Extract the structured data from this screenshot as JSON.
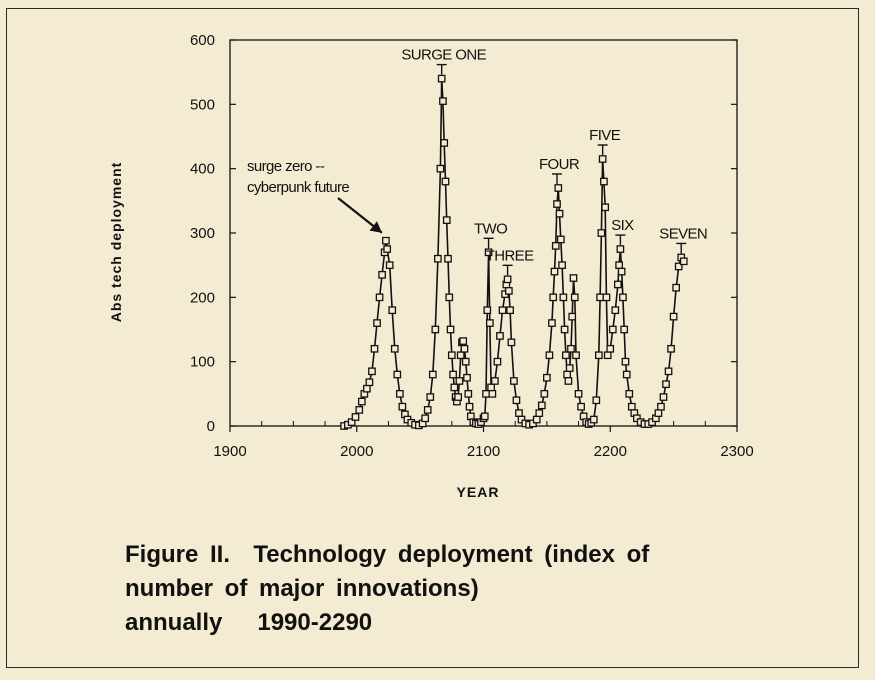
{
  "caption": {
    "line1": "Figure II.  Technology deployment (index of",
    "line2": "number of major innovations)",
    "line3": "annually   1990-2290"
  },
  "chart_data": {
    "type": "line",
    "xlabel": "YEAR",
    "ylabel": "Abs tech deployment",
    "xlim": [
      1900,
      2300
    ],
    "ylim": [
      0,
      600
    ],
    "x_ticks": [
      1900,
      2000,
      2100,
      2200,
      2300
    ],
    "y_ticks": [
      0,
      100,
      200,
      300,
      400,
      500,
      600
    ],
    "markers": "open-square",
    "grid": false,
    "series": [
      {
        "points": [
          [
            1990,
            0
          ],
          [
            1993,
            2
          ],
          [
            1996,
            6
          ],
          [
            1999,
            14
          ],
          [
            2002,
            25
          ],
          [
            2004,
            38
          ],
          [
            2006,
            50
          ],
          [
            2008,
            58
          ],
          [
            2010,
            68
          ],
          [
            2012,
            85
          ],
          [
            2014,
            120
          ],
          [
            2016,
            160
          ],
          [
            2018,
            200
          ],
          [
            2020,
            235
          ],
          [
            2022,
            270
          ],
          [
            2023,
            288
          ],
          [
            2024,
            275
          ],
          [
            2026,
            250
          ],
          [
            2028,
            180
          ],
          [
            2030,
            120
          ],
          [
            2032,
            80
          ],
          [
            2034,
            50
          ],
          [
            2036,
            30
          ],
          [
            2038,
            18
          ],
          [
            2040,
            10
          ],
          [
            2043,
            5
          ],
          [
            2046,
            2
          ],
          [
            2049,
            1
          ],
          [
            2052,
            4
          ],
          [
            2054,
            12
          ],
          [
            2056,
            25
          ],
          [
            2058,
            45
          ],
          [
            2060,
            80
          ],
          [
            2062,
            150
          ],
          [
            2064,
            260
          ],
          [
            2066,
            400
          ],
          [
            2067,
            540
          ],
          [
            2068,
            505
          ],
          [
            2069,
            440
          ],
          [
            2070,
            380
          ],
          [
            2071,
            320
          ],
          [
            2072,
            260
          ],
          [
            2073,
            200
          ],
          [
            2074,
            150
          ],
          [
            2075,
            110
          ],
          [
            2076,
            80
          ],
          [
            2077,
            60
          ],
          [
            2078,
            45
          ],
          [
            2079,
            38
          ],
          [
            2080,
            45
          ],
          [
            2081,
            70
          ],
          [
            2082,
            110
          ],
          [
            2083,
            130
          ],
          [
            2084,
            132
          ],
          [
            2085,
            120
          ],
          [
            2086,
            100
          ],
          [
            2087,
            75
          ],
          [
            2088,
            50
          ],
          [
            2089,
            30
          ],
          [
            2090,
            15
          ],
          [
            2092,
            6
          ],
          [
            2094,
            4
          ],
          [
            2096,
            3
          ],
          [
            2098,
            6
          ],
          [
            2100,
            12
          ],
          [
            2101,
            15
          ],
          [
            2102,
            50
          ],
          [
            2103,
            180
          ],
          [
            2104,
            270
          ],
          [
            2105,
            160
          ],
          [
            2106,
            60
          ],
          [
            2107,
            50
          ],
          [
            2109,
            70
          ],
          [
            2111,
            100
          ],
          [
            2113,
            140
          ],
          [
            2115,
            180
          ],
          [
            2117,
            205
          ],
          [
            2118,
            220
          ],
          [
            2119,
            228
          ],
          [
            2120,
            210
          ],
          [
            2121,
            180
          ],
          [
            2122,
            130
          ],
          [
            2124,
            70
          ],
          [
            2126,
            40
          ],
          [
            2128,
            20
          ],
          [
            2130,
            10
          ],
          [
            2133,
            4
          ],
          [
            2136,
            2
          ],
          [
            2139,
            4
          ],
          [
            2142,
            10
          ],
          [
            2144,
            20
          ],
          [
            2146,
            32
          ],
          [
            2148,
            50
          ],
          [
            2150,
            75
          ],
          [
            2152,
            110
          ],
          [
            2154,
            160
          ],
          [
            2155,
            200
          ],
          [
            2156,
            240
          ],
          [
            2157,
            280
          ],
          [
            2158,
            345
          ],
          [
            2159,
            370
          ],
          [
            2160,
            330
          ],
          [
            2161,
            290
          ],
          [
            2162,
            250
          ],
          [
            2163,
            200
          ],
          [
            2164,
            150
          ],
          [
            2165,
            110
          ],
          [
            2166,
            80
          ],
          [
            2167,
            70
          ],
          [
            2168,
            90
          ],
          [
            2169,
            120
          ],
          [
            2170,
            170
          ],
          [
            2171,
            230
          ],
          [
            2172,
            200
          ],
          [
            2173,
            110
          ],
          [
            2175,
            50
          ],
          [
            2177,
            30
          ],
          [
            2179,
            15
          ],
          [
            2181,
            6
          ],
          [
            2183,
            3
          ],
          [
            2185,
            5
          ],
          [
            2187,
            10
          ],
          [
            2189,
            40
          ],
          [
            2191,
            110
          ],
          [
            2192,
            200
          ],
          [
            2193,
            300
          ],
          [
            2194,
            415
          ],
          [
            2195,
            380
          ],
          [
            2196,
            340
          ],
          [
            2197,
            200
          ],
          [
            2198,
            110
          ],
          [
            2200,
            120
          ],
          [
            2202,
            150
          ],
          [
            2204,
            180
          ],
          [
            2206,
            220
          ],
          [
            2207,
            250
          ],
          [
            2208,
            275
          ],
          [
            2209,
            240
          ],
          [
            2210,
            200
          ],
          [
            2211,
            150
          ],
          [
            2212,
            100
          ],
          [
            2213,
            80
          ],
          [
            2215,
            50
          ],
          [
            2217,
            30
          ],
          [
            2219,
            20
          ],
          [
            2221,
            12
          ],
          [
            2224,
            6
          ],
          [
            2227,
            3
          ],
          [
            2230,
            3
          ],
          [
            2233,
            6
          ],
          [
            2236,
            12
          ],
          [
            2238,
            20
          ],
          [
            2240,
            30
          ],
          [
            2242,
            45
          ],
          [
            2244,
            65
          ],
          [
            2246,
            85
          ],
          [
            2248,
            120
          ],
          [
            2250,
            170
          ],
          [
            2252,
            215
          ],
          [
            2254,
            248
          ],
          [
            2256,
            262
          ],
          [
            2258,
            256
          ]
        ]
      }
    ],
    "annotations": [
      {
        "text": "SURGE ONE",
        "x": 2067,
        "y": 540
      },
      {
        "text": "TWO",
        "x": 2104,
        "y": 270
      },
      {
        "text": "THREE",
        "x": 2119,
        "y": 228
      },
      {
        "text": "FOUR",
        "x": 2158,
        "y": 370
      },
      {
        "text": "FIVE",
        "x": 2194,
        "y": 415
      },
      {
        "text": "SIX",
        "x": 2208,
        "y": 275
      },
      {
        "text": "SEVEN",
        "x": 2256,
        "y": 262
      }
    ],
    "callout": {
      "line1": "surge zero --",
      "line2": "cyberpunk future",
      "x": 2023,
      "y": 288
    }
  }
}
